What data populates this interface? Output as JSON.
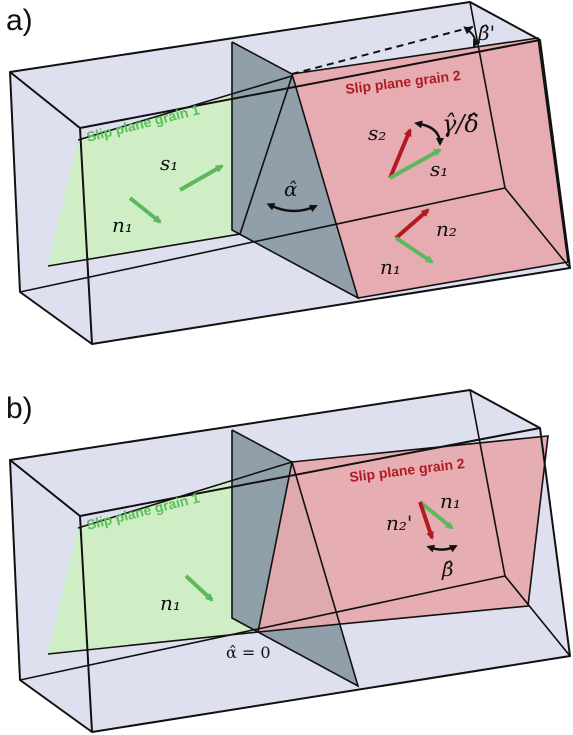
{
  "panels": {
    "a": {
      "label": "a)",
      "grain1_label": "Slip plane grain 1",
      "grain2_label": "Slip plane grain 2",
      "beta_prime": "β̂'",
      "gamma_delta": "γ̂/δ̂",
      "alpha": "α̂",
      "s1_left": "s₁",
      "n1_left": "n₁",
      "s2": "s₂",
      "s1_right": "s₁",
      "n2": "n₂",
      "n1_right": "n₁"
    },
    "b": {
      "label": "b)",
      "grain1_label": "Slip plane grain 1",
      "grain2_label": "Slip plane grain 2",
      "n1_left": "n₁",
      "n2_prime": "n₂'",
      "n1_right": "n₁",
      "beta": "β̂",
      "alpha_zero": "α̂ = 0"
    }
  },
  "colors": {
    "box_fill": "#dfe0ef",
    "box_edge": "#111111",
    "grain1_plane": "#cdeec3",
    "grain2_plane": "#e6a9ad",
    "boundary_plane": "#8c9ba6",
    "grain1_text": "#5cbf5a",
    "grain2_text": "#b01b22",
    "arrow_green": "#5cb85c",
    "arrow_red": "#b01b22"
  }
}
